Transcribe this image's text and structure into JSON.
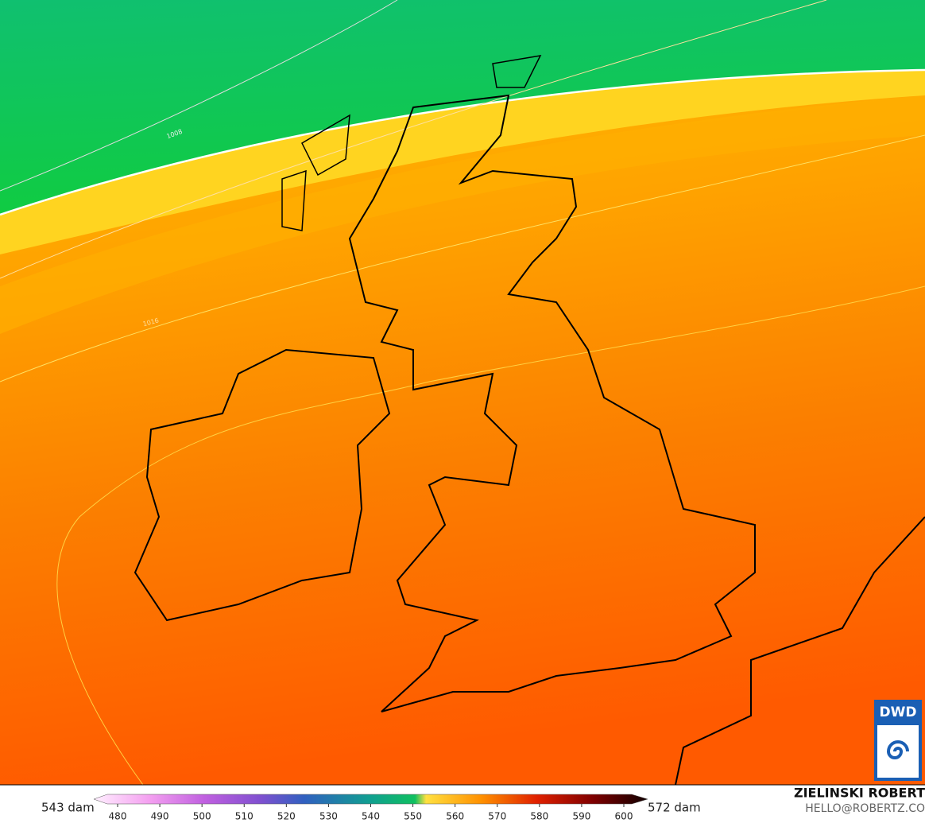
{
  "map": {
    "isobar_labels": [
      "1008",
      "1016"
    ],
    "legend": {
      "min_label": "543 dam",
      "max_label": "572 dam",
      "ticks": [
        480,
        490,
        500,
        510,
        520,
        530,
        540,
        550,
        560,
        570,
        580,
        590,
        600
      ]
    },
    "credit": {
      "name": "ZIELINSKI ROBERT",
      "contact": "HELLO@ROBERTZ.CO"
    },
    "logo": "DWD"
  }
}
